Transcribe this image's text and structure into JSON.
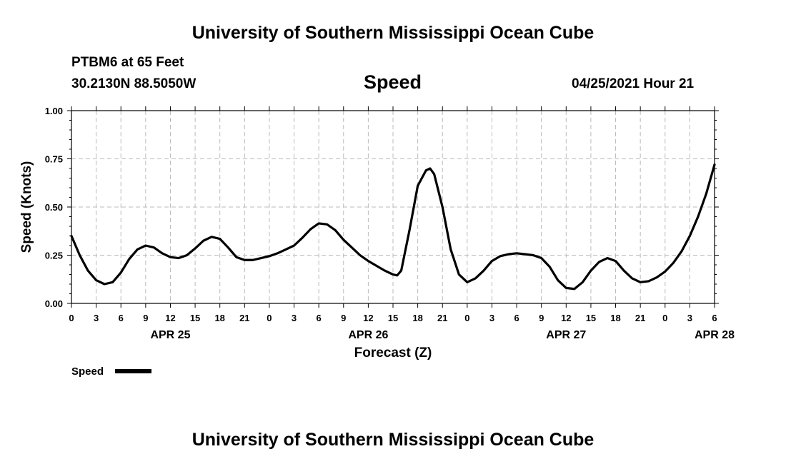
{
  "header": {
    "top_title": "University of Southern Mississippi Ocean Cube",
    "bottom_title": "University of Southern Mississippi Ocean Cube",
    "station": "PTBM6 at 65 Feet",
    "location": "30.2130N  88.5050W",
    "run": "04/25/2021 Hour 21"
  },
  "colors": {
    "line": "#000000",
    "grid": "#bbbbbb",
    "axis": "#000000",
    "background": "#ffffff"
  },
  "chart_data": {
    "type": "line",
    "title": "Speed",
    "xlabel": "Forecast (Z)",
    "ylabel": "Speed (Knots)",
    "x_unit": "hours since APR 25 00Z",
    "xlim": [
      0,
      78
    ],
    "ylim": [
      0,
      1.0
    ],
    "grid": true,
    "y_ticks": [
      {
        "value": 0.0,
        "label": "0.00"
      },
      {
        "value": 0.25,
        "label": "0.25"
      },
      {
        "value": 0.5,
        "label": "0.50"
      },
      {
        "value": 0.75,
        "label": "0.75"
      },
      {
        "value": 1.0,
        "label": "1.00"
      }
    ],
    "x_ticks": [
      {
        "value": 0,
        "label": "0"
      },
      {
        "value": 3,
        "label": "3"
      },
      {
        "value": 6,
        "label": "6"
      },
      {
        "value": 9,
        "label": "9"
      },
      {
        "value": 12,
        "label": "12"
      },
      {
        "value": 15,
        "label": "15"
      },
      {
        "value": 18,
        "label": "18"
      },
      {
        "value": 21,
        "label": "21"
      },
      {
        "value": 24,
        "label": "0"
      },
      {
        "value": 27,
        "label": "3"
      },
      {
        "value": 30,
        "label": "6"
      },
      {
        "value": 33,
        "label": "9"
      },
      {
        "value": 36,
        "label": "12"
      },
      {
        "value": 39,
        "label": "15"
      },
      {
        "value": 42,
        "label": "18"
      },
      {
        "value": 45,
        "label": "21"
      },
      {
        "value": 48,
        "label": "0"
      },
      {
        "value": 51,
        "label": "3"
      },
      {
        "value": 54,
        "label": "6"
      },
      {
        "value": 57,
        "label": "9"
      },
      {
        "value": 60,
        "label": "12"
      },
      {
        "value": 63,
        "label": "15"
      },
      {
        "value": 66,
        "label": "18"
      },
      {
        "value": 69,
        "label": "21"
      },
      {
        "value": 72,
        "label": "0"
      },
      {
        "value": 75,
        "label": "3"
      },
      {
        "value": 78,
        "label": "6"
      }
    ],
    "day_labels": [
      {
        "value": 12,
        "label": "APR 25"
      },
      {
        "value": 36,
        "label": "APR 26"
      },
      {
        "value": 60,
        "label": "APR 27"
      },
      {
        "value": 78,
        "label": "APR 28"
      }
    ],
    "series": [
      {
        "name": "Speed",
        "x": [
          0,
          1,
          2,
          3,
          4,
          5,
          6,
          7,
          8,
          9,
          10,
          11,
          12,
          13,
          14,
          15,
          16,
          17,
          18,
          19,
          20,
          21,
          22,
          23,
          24,
          25,
          26,
          27,
          28,
          29,
          30,
          31,
          32,
          33,
          34,
          35,
          36,
          37,
          38,
          39,
          39.5,
          40,
          41,
          42,
          43,
          43.5,
          44,
          45,
          46,
          47,
          48,
          49,
          50,
          51,
          52,
          53,
          54,
          55,
          56,
          57,
          58,
          59,
          60,
          61,
          62,
          63,
          64,
          65,
          66,
          67,
          68,
          69,
          70,
          71,
          72,
          73,
          74,
          75,
          76,
          77,
          78
        ],
        "values": [
          0.35,
          0.25,
          0.17,
          0.12,
          0.1,
          0.11,
          0.16,
          0.23,
          0.28,
          0.3,
          0.29,
          0.26,
          0.24,
          0.235,
          0.25,
          0.285,
          0.325,
          0.345,
          0.335,
          0.29,
          0.24,
          0.225,
          0.225,
          0.235,
          0.245,
          0.26,
          0.28,
          0.3,
          0.34,
          0.385,
          0.415,
          0.41,
          0.38,
          0.33,
          0.29,
          0.25,
          0.22,
          0.195,
          0.17,
          0.15,
          0.145,
          0.17,
          0.38,
          0.61,
          0.69,
          0.7,
          0.67,
          0.5,
          0.28,
          0.15,
          0.11,
          0.13,
          0.17,
          0.22,
          0.245,
          0.255,
          0.26,
          0.255,
          0.25,
          0.235,
          0.19,
          0.12,
          0.08,
          0.075,
          0.11,
          0.17,
          0.215,
          0.235,
          0.22,
          0.17,
          0.13,
          0.11,
          0.115,
          0.135,
          0.165,
          0.21,
          0.27,
          0.35,
          0.45,
          0.57,
          0.72
        ]
      }
    ],
    "legend": {
      "position": "bottom-left",
      "label": "Speed"
    }
  }
}
